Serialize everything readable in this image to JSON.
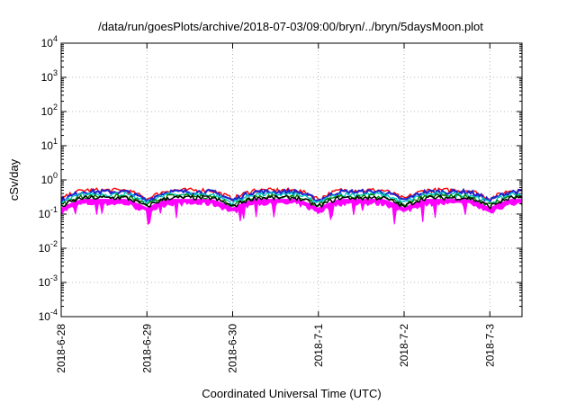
{
  "chart_data": {
    "type": "area",
    "title": "/data/run/goesPlots/archive/2018-07-03/09:00/bryn/../bryn/5daysMoon.plot",
    "xlabel": "Coordinated Universal Time (UTC)",
    "ylabel": "cSv/day",
    "y_scale": "log",
    "ylim": [
      0.0001,
      10000
    ],
    "y_ticks": [
      {
        "base": "10",
        "exp": "-4",
        "value": 0.0001
      },
      {
        "base": "10",
        "exp": "-3",
        "value": 0.001
      },
      {
        "base": "10",
        "exp": "-2",
        "value": 0.01
      },
      {
        "base": "10",
        "exp": "-1",
        "value": 0.1
      },
      {
        "base": "10",
        "exp": "0",
        "value": 1
      },
      {
        "base": "10",
        "exp": "1",
        "value": 10
      },
      {
        "base": "10",
        "exp": "2",
        "value": 100
      },
      {
        "base": "10",
        "exp": "3",
        "value": 1000
      },
      {
        "base": "10",
        "exp": "4",
        "value": 10000
      }
    ],
    "xlim": [
      "2018-06-28 00:00",
      "2018-07-03 09:00"
    ],
    "x_ticks": [
      "2018-6-28",
      "2018-6-29",
      "2018-6-30",
      "2018-7-1",
      "2018-7-2",
      "2018-7-3"
    ],
    "grid": true,
    "series": [
      {
        "color": "#ff00ff",
        "base_value": 0.2,
        "min_value": 0.05
      },
      {
        "color": "#ff0000",
        "base_value": 0.5,
        "max_value": 0.68
      },
      {
        "color": "#2222cc",
        "base_value": 0.45
      },
      {
        "color": "#00c8c8",
        "base_value": 0.38
      },
      {
        "color": "#008000",
        "base_value": 0.33
      },
      {
        "color": "#000000",
        "base_value": 0.3
      }
    ],
    "daily_pattern": {
      "dips": [
        "2018-06-28 00:00",
        "2018-06-29 00:00",
        "2018-06-30 00:00",
        "2018-07-01 00:00",
        "2018-07-02 00:00",
        "2018-07-03 00:00"
      ],
      "low_value": 0.15
    }
  }
}
